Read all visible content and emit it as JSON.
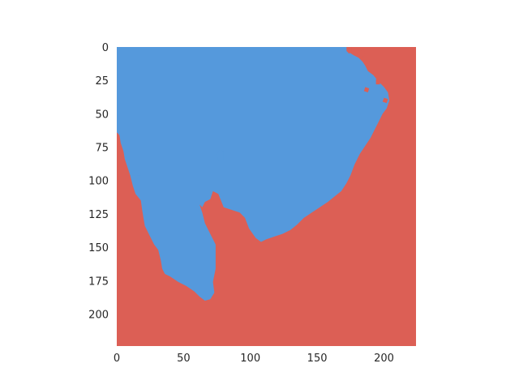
{
  "chart_data": {
    "type": "heatmap",
    "title": "",
    "xlabel": "",
    "ylabel": "",
    "image_size": [
      224,
      224
    ],
    "xlim": [
      0,
      224
    ],
    "ylim": [
      224,
      0
    ],
    "grid": false,
    "colors": {
      "foreground": "#5599dc",
      "background": "#dc5f55",
      "page": "#ffffff",
      "text": "#262626"
    },
    "x_ticks": [
      {
        "value": 0,
        "label": "0"
      },
      {
        "value": 50,
        "label": "50"
      },
      {
        "value": 100,
        "label": "100"
      },
      {
        "value": 150,
        "label": "150"
      },
      {
        "value": 200,
        "label": "200"
      }
    ],
    "y_ticks": [
      {
        "value": 0,
        "label": "0"
      },
      {
        "value": 25,
        "label": "25"
      },
      {
        "value": 50,
        "label": "50"
      },
      {
        "value": 75,
        "label": "75"
      },
      {
        "value": 100,
        "label": "100"
      },
      {
        "value": 125,
        "label": "125"
      },
      {
        "value": 150,
        "label": "150"
      },
      {
        "value": 175,
        "label": "175"
      },
      {
        "value": 200,
        "label": "200"
      }
    ],
    "foreground_region": [
      [
        0,
        0
      ],
      [
        172,
        0
      ],
      [
        174,
        4
      ],
      [
        177,
        6
      ],
      [
        181,
        8
      ],
      [
        184,
        11
      ],
      [
        186,
        14
      ],
      [
        188,
        18
      ],
      [
        192,
        21
      ],
      [
        196,
        26
      ],
      [
        200,
        30
      ],
      [
        203,
        34
      ],
      [
        204,
        40
      ],
      [
        202,
        46
      ],
      [
        199,
        50
      ],
      [
        196,
        56
      ],
      [
        193,
        62
      ],
      [
        190,
        68
      ],
      [
        186,
        74
      ],
      [
        182,
        80
      ],
      [
        178,
        88
      ],
      [
        175,
        96
      ],
      [
        172,
        102
      ],
      [
        168,
        108
      ],
      [
        163,
        112
      ],
      [
        158,
        116
      ],
      [
        152,
        120
      ],
      [
        146,
        124
      ],
      [
        140,
        128
      ],
      [
        135,
        133
      ],
      [
        130,
        137
      ],
      [
        124,
        140
      ],
      [
        118,
        142
      ],
      [
        112,
        144
      ],
      [
        108,
        146
      ],
      [
        104,
        143
      ],
      [
        99,
        136
      ],
      [
        96,
        128
      ],
      [
        92,
        124
      ],
      [
        86,
        122
      ],
      [
        80,
        120
      ],
      [
        76,
        110
      ],
      [
        72,
        108
      ],
      [
        70,
        114
      ],
      [
        66,
        116
      ],
      [
        64,
        120
      ],
      [
        62,
        118
      ],
      [
        64,
        124
      ],
      [
        66,
        132
      ],
      [
        70,
        140
      ],
      [
        74,
        148
      ],
      [
        74,
        156
      ],
      [
        74,
        166
      ],
      [
        72,
        176
      ],
      [
        73,
        184
      ],
      [
        70,
        189
      ],
      [
        66,
        190
      ],
      [
        62,
        187
      ],
      [
        58,
        183
      ],
      [
        52,
        179
      ],
      [
        46,
        176
      ],
      [
        40,
        172
      ],
      [
        36,
        170
      ],
      [
        34,
        166
      ],
      [
        33,
        160
      ],
      [
        31,
        152
      ],
      [
        28,
        148
      ],
      [
        26,
        144
      ],
      [
        24,
        140
      ],
      [
        21,
        134
      ],
      [
        20,
        128
      ],
      [
        19,
        122
      ],
      [
        18,
        115
      ],
      [
        14,
        110
      ],
      [
        12,
        104
      ],
      [
        10,
        96
      ],
      [
        8,
        90
      ],
      [
        6,
        84
      ],
      [
        5,
        78
      ],
      [
        3,
        72
      ],
      [
        2,
        66
      ],
      [
        0,
        64
      ]
    ],
    "foreground_spots": [
      [
        [
          77,
          77
        ],
        [
          80,
          78
        ],
        [
          80,
          85
        ],
        [
          78,
          88
        ],
        [
          76,
          85
        ],
        [
          75,
          80
        ]
      ],
      [
        [
          15,
          92
        ],
        [
          18,
          91
        ],
        [
          18,
          96
        ],
        [
          15,
          96
        ]
      ]
    ],
    "background_spots": [
      [
        [
          172,
          0
        ],
        [
          176,
          0
        ],
        [
          176,
          3
        ],
        [
          174,
          5
        ],
        [
          172,
          3
        ]
      ],
      [
        [
          181,
          3
        ],
        [
          185,
          2
        ],
        [
          186,
          6
        ],
        [
          183,
          8
        ],
        [
          180,
          6
        ]
      ],
      [
        [
          194,
          24
        ],
        [
          197,
          25
        ],
        [
          197,
          28
        ],
        [
          194,
          28
        ]
      ],
      [
        [
          186,
          30
        ],
        [
          189,
          31
        ],
        [
          188,
          34
        ],
        [
          185,
          33
        ]
      ],
      [
        [
          200,
          38
        ],
        [
          203,
          39
        ],
        [
          202,
          42
        ],
        [
          199,
          41
        ]
      ]
    ]
  }
}
